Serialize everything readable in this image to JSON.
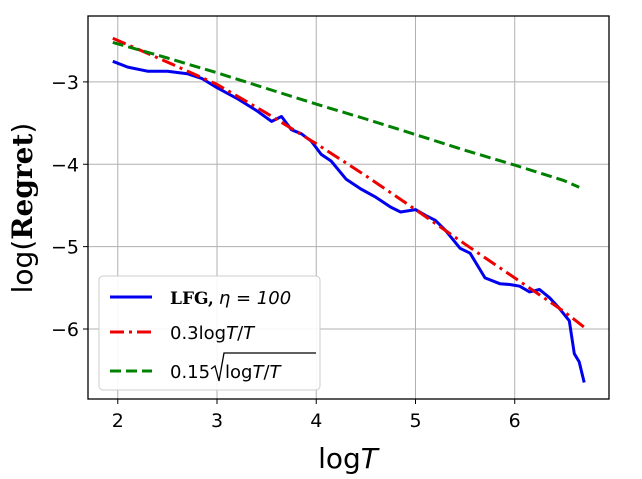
{
  "chart_data": {
    "type": "line",
    "xlabel_prefix": "log",
    "xlabel_var": "T",
    "ylabel_prefix": "log(",
    "ylabel_word": "Regret",
    "ylabel_suffix": ")",
    "xlim": [
      1.7,
      6.95
    ],
    "ylim": [
      -6.85,
      -2.2
    ],
    "xticks": [
      2,
      3,
      4,
      5,
      6
    ],
    "xtick_labels": [
      "2",
      "3",
      "4",
      "5",
      "6"
    ],
    "yticks": [
      -3,
      -4,
      -5,
      -6
    ],
    "ytick_labels": [
      "−3",
      "−4",
      "−5",
      "−6"
    ],
    "grid": true,
    "legend_position": "lower-left",
    "series": [
      {
        "name": "LFG, η = 100",
        "legend_bold": "LFG,",
        "legend_eta": "η = 100",
        "color": "#0000ee",
        "style": "solid",
        "x": [
          1.95,
          2.1,
          2.3,
          2.5,
          2.7,
          2.85,
          3.0,
          3.2,
          3.4,
          3.55,
          3.65,
          3.75,
          3.85,
          3.95,
          4.05,
          4.15,
          4.3,
          4.45,
          4.6,
          4.75,
          4.85,
          5.0,
          5.1,
          5.2,
          5.3,
          5.45,
          5.55,
          5.7,
          5.85,
          5.95,
          6.05,
          6.15,
          6.25,
          6.35,
          6.45,
          6.55,
          6.6,
          6.65,
          6.7
        ],
        "y": [
          -2.75,
          -2.82,
          -2.87,
          -2.87,
          -2.9,
          -2.96,
          -3.07,
          -3.2,
          -3.35,
          -3.48,
          -3.42,
          -3.58,
          -3.63,
          -3.72,
          -3.88,
          -3.96,
          -4.18,
          -4.3,
          -4.4,
          -4.52,
          -4.58,
          -4.55,
          -4.62,
          -4.68,
          -4.8,
          -5.02,
          -5.08,
          -5.38,
          -5.45,
          -5.46,
          -5.48,
          -5.55,
          -5.52,
          -5.62,
          -5.75,
          -5.9,
          -6.3,
          -6.4,
          -6.65
        ]
      },
      {
        "name": "0.3logT/T",
        "legend_text": "0.3log",
        "legend_var": "T",
        "legend_tail": "/",
        "legend_var2": "T",
        "color": "#ee0000",
        "style": "dashdot",
        "x": [
          1.95,
          2.5,
          3.0,
          3.5,
          4.0,
          4.5,
          5.0,
          5.5,
          6.0,
          6.5,
          6.7
        ],
        "y": [
          -2.47,
          -2.76,
          -3.03,
          -3.38,
          -3.75,
          -4.14,
          -4.55,
          -4.97,
          -5.38,
          -5.79,
          -5.98
        ]
      },
      {
        "name": "0.15√(logT/T)",
        "legend_text": "0.15",
        "legend_rad": "log",
        "legend_var": "T",
        "legend_tail": "/",
        "legend_var2": "T",
        "color": "#008000",
        "style": "dashed",
        "x": [
          1.95,
          2.5,
          3.0,
          3.5,
          4.0,
          4.5,
          5.0,
          5.5,
          6.0,
          6.5,
          6.65
        ],
        "y": [
          -2.52,
          -2.71,
          -2.89,
          -3.08,
          -3.27,
          -3.45,
          -3.64,
          -3.83,
          -4.01,
          -4.2,
          -4.28
        ]
      }
    ]
  }
}
